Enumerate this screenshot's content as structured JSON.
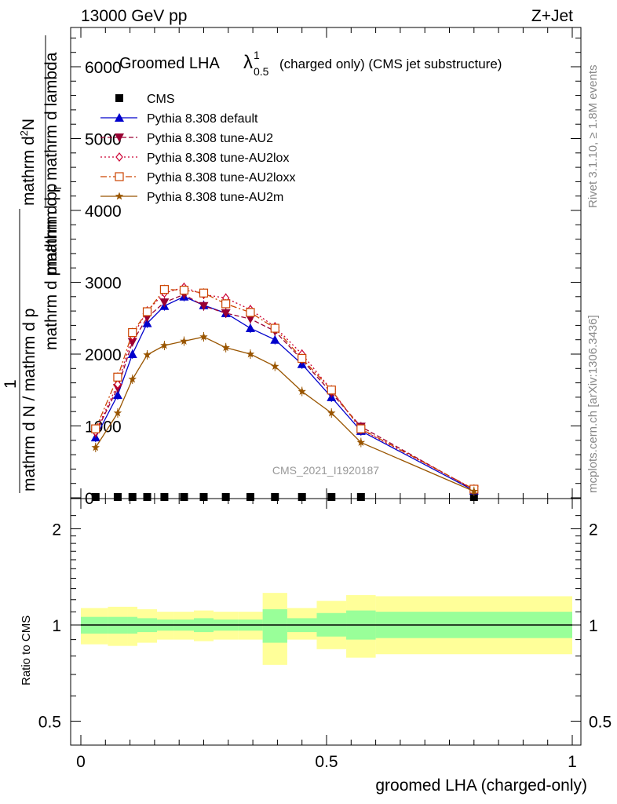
{
  "header": {
    "left": "13000 GeV pp",
    "right": "Z+Jet"
  },
  "side_labels": {
    "rivet": "Rivet 3.1.10, ≥ 1.8M events",
    "mcplots": "mcplots.cern.ch [arXiv:1306.3436]"
  },
  "chart_data": [
    {
      "type": "line",
      "title_main": "Groomed LHA",
      "title_lambda": "λ",
      "title_sub": "0.5",
      "title_sup": "1",
      "title_tail": "(charged only) (CMS jet substructure)",
      "watermark": "CMS_2021_I1920187",
      "ylabel_lines": [
        "mathrm d²N",
        "mathrm d p_T mathrm d lambda",
        "mathrm d p",
        "1",
        "mathrm d N / mathrm d p",
        "mathrm d p"
      ],
      "ylabel_parts": {
        "top1": "mathrm d",
        "top1_sup": "2",
        "top1_tail": "N",
        "top2": "mathrm d p",
        "top2_sub": "T",
        "top2_tail": " mathrm d lambda",
        "mid": "mathrm d pmathrm d p",
        "one": "1",
        "bottom": "mathrm d N / mathrm d p",
        "bottom2": "mathrm d p"
      },
      "ylim": [
        0,
        6500
      ],
      "yticks": [
        0,
        1000,
        2000,
        3000,
        4000,
        5000,
        6000
      ],
      "ytick_labels": [
        "0",
        "1000",
        "2000",
        "3000",
        "4000",
        "5000",
        "6000"
      ],
      "xlim": [
        -0.02,
        1.0
      ],
      "x": [
        0.03,
        0.075,
        0.105,
        0.135,
        0.17,
        0.21,
        0.25,
        0.295,
        0.345,
        0.395,
        0.45,
        0.51,
        0.57,
        0.8
      ],
      "legend_placement": "top-left",
      "series": [
        {
          "name": "CMS",
          "color": "#000000",
          "marker": "square",
          "dash": "",
          "values": [
            0,
            0,
            0,
            0,
            0,
            0,
            0,
            0,
            0,
            0,
            0,
            0,
            0,
            0
          ]
        },
        {
          "name": "Pythia 8.308 default",
          "color": "#0000cc",
          "marker": "triangle-up",
          "dash": "",
          "values": [
            840,
            1430,
            2000,
            2430,
            2670,
            2800,
            2680,
            2570,
            2360,
            2200,
            1860,
            1400,
            930,
            100
          ]
        },
        {
          "name": "Pythia 8.308 tune-AU2",
          "color": "#990033",
          "marker": "triangle-down",
          "dash": "6,3",
          "values": [
            900,
            1530,
            2170,
            2510,
            2720,
            2830,
            2670,
            2570,
            2490,
            2320,
            1920,
            1460,
            990,
            110
          ]
        },
        {
          "name": "Pythia 8.308 tune-AU2lox",
          "color": "#cc0033",
          "marker": "diamond-open",
          "dash": "2,3",
          "values": [
            920,
            1580,
            2250,
            2600,
            2850,
            2930,
            2830,
            2780,
            2620,
            2380,
            2000,
            1500,
            950,
            120
          ]
        },
        {
          "name": "Pythia 8.308 tune-AU2loxx",
          "color": "#cc4400",
          "marker": "square-open",
          "dash": "8,3,2,3",
          "values": [
            960,
            1680,
            2300,
            2590,
            2900,
            2890,
            2850,
            2700,
            2580,
            2360,
            1940,
            1500,
            960,
            120
          ]
        },
        {
          "name": "Pythia 8.308 tune-AU2m",
          "color": "#995500",
          "marker": "star",
          "dash": "",
          "values": [
            700,
            1180,
            1650,
            1990,
            2120,
            2180,
            2240,
            2090,
            2000,
            1830,
            1480,
            1180,
            770,
            90
          ]
        }
      ]
    },
    {
      "type": "area",
      "ylabel": "Ratio to CMS",
      "xlabel": "groomed LHA (charged-only)",
      "xlim": [
        -0.02,
        1.0
      ],
      "xticks": [
        0,
        0.5,
        1
      ],
      "xtick_labels": [
        "0",
        "0.5",
        "1"
      ],
      "log_scale_y": true,
      "ylim": [
        0.42,
        2.4
      ],
      "yticks": [
        0.5,
        1,
        2
      ],
      "ytick_labels": [
        "0.5",
        "1",
        "2"
      ],
      "bin_edges": [
        0.0,
        0.055,
        0.095,
        0.115,
        0.155,
        0.19,
        0.23,
        0.27,
        0.32,
        0.37,
        0.42,
        0.48,
        0.54,
        0.6,
        1.0
      ],
      "band_outer": {
        "color": "#ffff99",
        "lo": [
          0.87,
          0.86,
          0.86,
          0.88,
          0.9,
          0.9,
          0.89,
          0.9,
          0.9,
          0.75,
          0.9,
          0.84,
          0.79,
          0.81
        ],
        "hi": [
          1.13,
          1.14,
          1.14,
          1.12,
          1.1,
          1.1,
          1.11,
          1.1,
          1.1,
          1.26,
          1.13,
          1.19,
          1.24,
          1.23
        ]
      },
      "band_inner": {
        "color": "#99ff99",
        "lo": [
          0.94,
          0.94,
          0.94,
          0.95,
          0.96,
          0.96,
          0.95,
          0.96,
          0.96,
          0.88,
          0.95,
          0.92,
          0.9,
          0.91
        ],
        "hi": [
          1.06,
          1.06,
          1.06,
          1.05,
          1.04,
          1.04,
          1.05,
          1.04,
          1.04,
          1.12,
          1.05,
          1.09,
          1.11,
          1.1
        ]
      },
      "reference": 1
    }
  ]
}
